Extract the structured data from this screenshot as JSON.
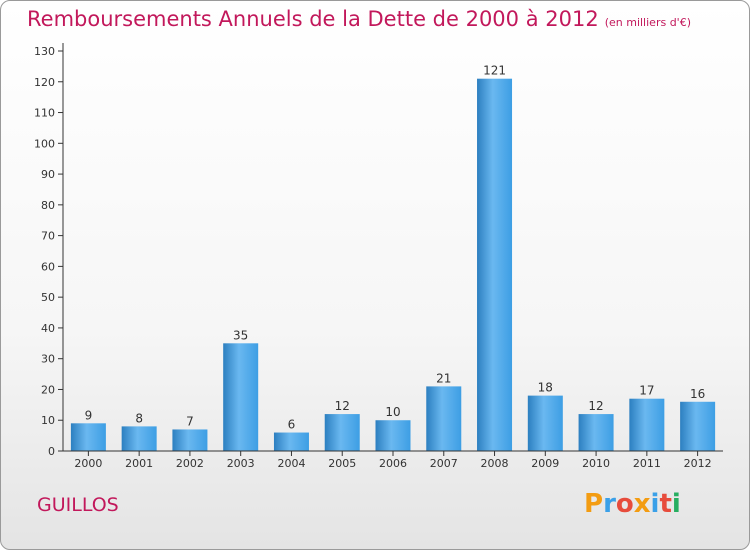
{
  "title": "Remboursements Annuels de la Dette de 2000 à 2012",
  "unit": "(en milliers d'€)",
  "commune": "GUILLOS",
  "logo": {
    "letters": [
      "P",
      "r",
      "o",
      "x",
      "i",
      "t",
      "i"
    ],
    "colors": [
      "#f39c12",
      "#3aa0e8",
      "#e74c3c",
      "#f39c12",
      "#3aa0e8",
      "#e74c3c",
      "#27ae60"
    ]
  },
  "colors": {
    "bar": "#3d9ee4",
    "bar_light": "#6ab8f0",
    "bar_dark": "#2c7fc0",
    "accent": "#c2185b",
    "axis": "#333333",
    "grid": "#d0d0d0"
  },
  "chart_data": {
    "type": "bar",
    "categories": [
      "2000",
      "2001",
      "2002",
      "2003",
      "2004",
      "2005",
      "2006",
      "2007",
      "2008",
      "2009",
      "2010",
      "2011",
      "2012"
    ],
    "values": [
      9,
      8,
      7,
      35,
      6,
      12,
      10,
      21,
      121,
      18,
      12,
      17,
      16
    ],
    "data_labels": [
      "9",
      "8",
      "7",
      "35",
      "6",
      "12",
      "10",
      "21",
      "121",
      "18",
      "12",
      "17",
      "16"
    ],
    "title": "Remboursements Annuels de la Dette de 2000 à 2012",
    "xlabel": "",
    "ylabel": "",
    "ylim": [
      0,
      130
    ],
    "yticks": [
      0,
      10,
      20,
      30,
      40,
      50,
      60,
      70,
      80,
      90,
      100,
      110,
      120,
      130
    ],
    "grid": false,
    "legend": "none"
  }
}
